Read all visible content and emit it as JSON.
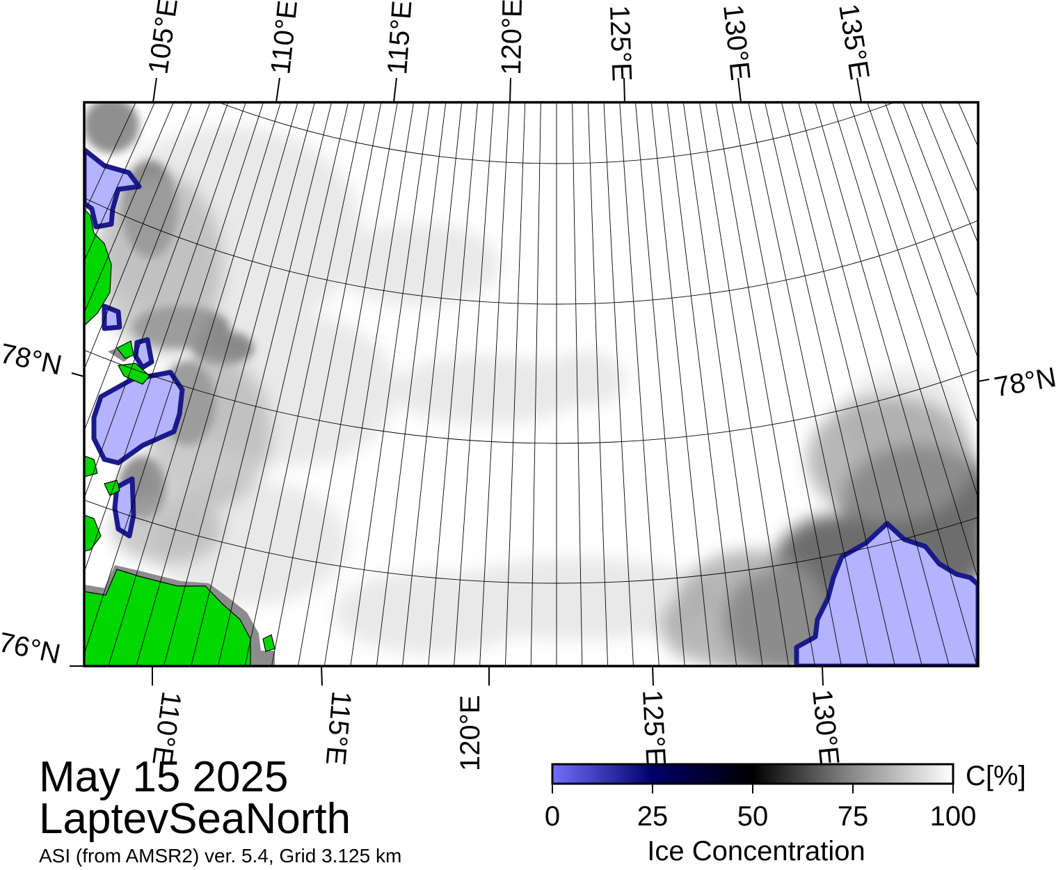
{
  "map": {
    "date": "May 15 2025",
    "region": "LaptevSeaNorth",
    "source": "ASI (from AMSR2) ver. 5.4,  Grid 3.125 km",
    "colors": {
      "land": "#00d600",
      "land_shadow": "#8c8c8c",
      "open_water": "#ffffff",
      "low_ice": "#b3b3ff",
      "frame": "#000000"
    },
    "top_lon_labels": [
      "105°E",
      "110°E",
      "115°E",
      "120°E",
      "125°E",
      "130°E",
      "135°E"
    ],
    "bottom_lon_labels": [
      "110°E",
      "115°E",
      "120°E",
      "125°E",
      "130°E"
    ],
    "lat_labels": {
      "left_upper": "78°N",
      "left_lower": "76°N",
      "right_upper": "78°N"
    }
  },
  "colorbar": {
    "title": "Ice Concentration",
    "unit": "C[%]",
    "ticks": [
      "0",
      "25",
      "50",
      "75",
      "100"
    ],
    "tick_values": [
      0,
      25,
      50,
      75,
      100
    ],
    "range": [
      0,
      100
    ],
    "stops": [
      {
        "value": 0,
        "color": "#7070ff"
      },
      {
        "value": 25,
        "color": "#00006a"
      },
      {
        "value": 50,
        "color": "#000000"
      },
      {
        "value": 75,
        "color": "#8a8a8a"
      },
      {
        "value": 100,
        "color": "#ffffff"
      }
    ]
  }
}
